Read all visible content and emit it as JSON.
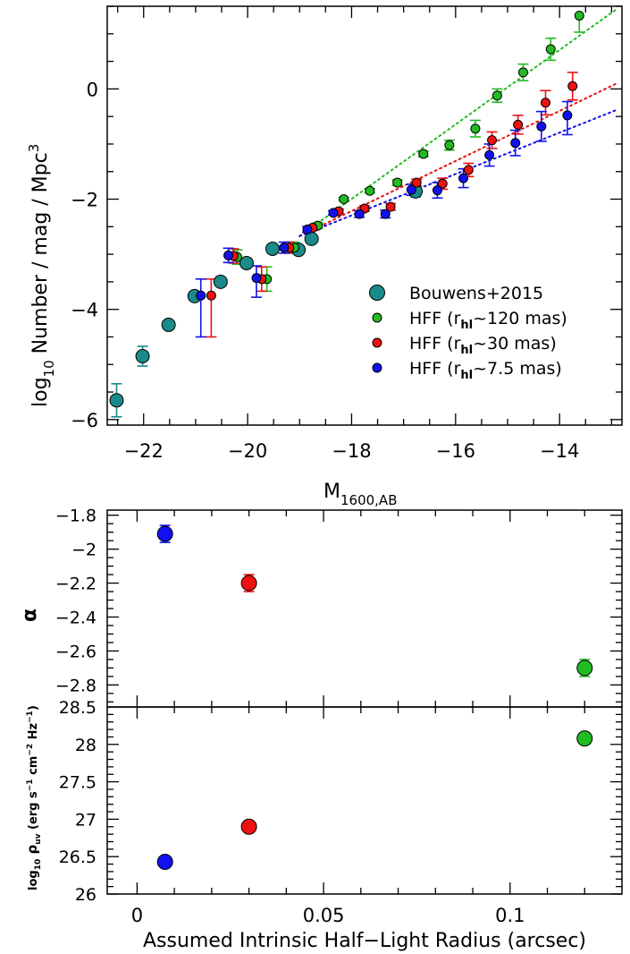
{
  "colors": {
    "bouwens": "#1a8a8a",
    "hff_green": "#22bb22",
    "hff_red": "#ee1111",
    "hff_blue": "#1111ee",
    "axis": "#000000"
  },
  "chart_data": [
    {
      "type": "scatter",
      "panel": "luminosity-function",
      "xlabel_main": "M",
      "xlabel_sub": "1600,AB",
      "ylabel_main": "log",
      "ylabel_sub": "10",
      "ylabel_rest": " Number  /  mag  /  Mpc",
      "ylabel_sup": "3",
      "xlim": [
        -22.7,
        -12.8
      ],
      "ylim": [
        -6.1,
        1.5
      ],
      "xticks": [
        -22,
        -20,
        -18,
        -16,
        -14
      ],
      "xtick_labels": [
        "−22",
        "−20",
        "−18",
        "−16",
        "−14"
      ],
      "yticks": [
        -6,
        -4,
        -2,
        0
      ],
      "ytick_labels": [
        "−6",
        "−4",
        "−2",
        "0"
      ],
      "legend": {
        "placement": "lower-right",
        "entries": [
          {
            "label_main": "Bouwens+2015",
            "label_sub": "",
            "label_rest": "",
            "color_key": "bouwens",
            "size": "large"
          },
          {
            "label_main": "HFF (r",
            "label_sub": "hl",
            "label_rest": "~120 mas)",
            "color_key": "hff_green",
            "size": "small"
          },
          {
            "label_main": "HFF (r",
            "label_sub": "hl",
            "label_rest": "~30 mas)",
            "color_key": "hff_red",
            "size": "small"
          },
          {
            "label_main": "HFF (r",
            "label_sub": "hl",
            "label_rest": "~7.5 mas)",
            "color_key": "hff_blue",
            "size": "small"
          }
        ]
      },
      "series": [
        {
          "key": "bouwens",
          "color_key": "bouwens",
          "marker": "large",
          "points": [
            {
              "x": -22.52,
              "y": -5.65,
              "err": 0.3
            },
            {
              "x": -22.02,
              "y": -4.85,
              "err": 0.18
            },
            {
              "x": -21.52,
              "y": -4.28,
              "err": 0.05
            },
            {
              "x": -21.02,
              "y": -3.76,
              "err": 0.04
            },
            {
              "x": -20.52,
              "y": -3.5,
              "err": 0.03
            },
            {
              "x": -20.02,
              "y": -3.16,
              "err": 0.03
            },
            {
              "x": -19.52,
              "y": -2.9,
              "err": 0.02
            },
            {
              "x": -19.02,
              "y": -2.92,
              "err": 0.04
            },
            {
              "x": -18.77,
              "y": -2.72,
              "err": 0.06
            },
            {
              "x": -16.77,
              "y": -1.86,
              "err": 0.1
            }
          ]
        },
        {
          "key": "hff_green",
          "color_key": "hff_green",
          "marker": "small",
          "points": [
            {
              "x": -20.2,
              "y": -3.05,
              "err_down": 0.13,
              "err_up": 0.13
            },
            {
              "x": -19.63,
              "y": -3.45,
              "err_down": 0.22,
              "err_up": 0.22
            },
            {
              "x": -19.1,
              "y": -2.88,
              "err_down": 0.1,
              "err_up": 0.1
            },
            {
              "x": -18.65,
              "y": -2.48,
              "err_down": 0.05,
              "err_up": 0.05
            },
            {
              "x": -18.15,
              "y": -2.0,
              "err_down": 0.03,
              "err_up": 0.03
            },
            {
              "x": -17.65,
              "y": -1.85,
              "err_down": 0.04,
              "err_up": 0.04
            },
            {
              "x": -17.12,
              "y": -1.7,
              "err_down": 0.05,
              "err_up": 0.05
            },
            {
              "x": -16.62,
              "y": -1.18,
              "err_down": 0.05,
              "err_up": 0.05
            },
            {
              "x": -16.12,
              "y": -1.02,
              "err_down": 0.09,
              "err_up": 0.09
            },
            {
              "x": -15.62,
              "y": -0.72,
              "err_down": 0.15,
              "err_up": 0.15
            },
            {
              "x": -15.2,
              "y": -0.12,
              "err_down": 0.12,
              "err_up": 0.12
            },
            {
              "x": -14.7,
              "y": 0.3,
              "err_down": 0.15,
              "err_up": 0.15
            },
            {
              "x": -14.17,
              "y": 0.72,
              "err_down": 0.2,
              "err_up": 0.2
            },
            {
              "x": -13.62,
              "y": 1.33,
              "err_down": 0.3,
              "err_up": 0.0
            }
          ]
        },
        {
          "key": "hff_red",
          "color_key": "hff_red",
          "marker": "small",
          "points": [
            {
              "x": -20.7,
              "y": -3.75,
              "err_down": 0.75,
              "err_up": 0.3
            },
            {
              "x": -20.27,
              "y": -3.03,
              "err_down": 0.13,
              "err_up": 0.13
            },
            {
              "x": -19.73,
              "y": -3.45,
              "err_down": 0.22,
              "err_up": 0.22
            },
            {
              "x": -19.2,
              "y": -2.88,
              "err_down": 0.1,
              "err_up": 0.1
            },
            {
              "x": -18.75,
              "y": -2.52,
              "err_down": 0.05,
              "err_up": 0.05
            },
            {
              "x": -18.25,
              "y": -2.22,
              "err_down": 0.04,
              "err_up": 0.04
            },
            {
              "x": -17.75,
              "y": -2.17,
              "err_down": 0.05,
              "err_up": 0.05
            },
            {
              "x": -17.25,
              "y": -2.14,
              "err_down": 0.06,
              "err_up": 0.06
            },
            {
              "x": -16.75,
              "y": -1.7,
              "err_down": 0.06,
              "err_up": 0.06
            },
            {
              "x": -16.25,
              "y": -1.72,
              "err_down": 0.1,
              "err_up": 0.1
            },
            {
              "x": -15.75,
              "y": -1.47,
              "err_down": 0.12,
              "err_up": 0.12
            },
            {
              "x": -15.3,
              "y": -0.93,
              "err_down": 0.15,
              "err_up": 0.15
            },
            {
              "x": -14.8,
              "y": -0.65,
              "err_down": 0.17,
              "err_up": 0.17
            },
            {
              "x": -14.27,
              "y": -0.25,
              "err_down": 0.22,
              "err_up": 0.22
            },
            {
              "x": -13.75,
              "y": 0.05,
              "err_down": 0.25,
              "err_up": 0.25
            }
          ]
        },
        {
          "key": "hff_blue",
          "color_key": "hff_blue",
          "marker": "small",
          "points": [
            {
              "x": -20.9,
              "y": -3.75,
              "err_down": 0.75,
              "err_up": 0.3
            },
            {
              "x": -20.37,
              "y": -3.02,
              "err_down": 0.13,
              "err_up": 0.13
            },
            {
              "x": -19.83,
              "y": -3.43,
              "err_down": 0.35,
              "err_up": 0.22
            },
            {
              "x": -19.3,
              "y": -2.88,
              "err_down": 0.1,
              "err_up": 0.1
            },
            {
              "x": -18.85,
              "y": -2.55,
              "err_down": 0.05,
              "err_up": 0.05
            },
            {
              "x": -18.35,
              "y": -2.25,
              "err_down": 0.04,
              "err_up": 0.04
            },
            {
              "x": -17.85,
              "y": -2.27,
              "err_down": 0.06,
              "err_up": 0.06
            },
            {
              "x": -17.35,
              "y": -2.27,
              "err_down": 0.07,
              "err_up": 0.07
            },
            {
              "x": -16.85,
              "y": -1.83,
              "err_down": 0.1,
              "err_up": 0.1
            },
            {
              "x": -16.35,
              "y": -1.84,
              "err_down": 0.14,
              "err_up": 0.14
            },
            {
              "x": -15.85,
              "y": -1.62,
              "err_down": 0.17,
              "err_up": 0.17
            },
            {
              "x": -15.35,
              "y": -1.2,
              "err_down": 0.2,
              "err_up": 0.2
            },
            {
              "x": -14.85,
              "y": -0.98,
              "err_down": 0.23,
              "err_up": 0.23
            },
            {
              "x": -14.35,
              "y": -0.68,
              "err_down": 0.27,
              "err_up": 0.27
            },
            {
              "x": -13.85,
              "y": -0.48,
              "err_down": 0.35,
              "err_up": 0.25
            }
          ]
        }
      ],
      "fit_lines": [
        {
          "color_key": "hff_green",
          "x": [
            -19.0,
            -12.9
          ],
          "y": [
            -2.67,
            1.45
          ]
        },
        {
          "color_key": "hff_red",
          "x": [
            -19.0,
            -12.9
          ],
          "y": [
            -2.67,
            0.1
          ]
        },
        {
          "color_key": "hff_blue",
          "x": [
            -19.0,
            -12.9
          ],
          "y": [
            -2.67,
            -0.38
          ]
        }
      ]
    },
    {
      "type": "scatter",
      "panel": "alpha",
      "ylabel": "α",
      "xlim": [
        -0.008,
        0.13
      ],
      "ylim": [
        -2.93,
        -1.77
      ],
      "yticks": [
        -2.8,
        -2.6,
        -2.4,
        -2.2,
        -2.0,
        -1.8
      ],
      "ytick_labels": [
        "−2.8",
        "−2.6",
        "−2.4",
        "−2.2",
        "−2",
        "−1.8"
      ],
      "points": [
        {
          "x": 0.0075,
          "y": -1.91,
          "err": 0.05,
          "color_key": "hff_blue"
        },
        {
          "x": 0.03,
          "y": -2.2,
          "err": 0.05,
          "color_key": "hff_red"
        },
        {
          "x": 0.12,
          "y": -2.7,
          "err": 0.05,
          "color_key": "hff_green"
        }
      ]
    },
    {
      "type": "scatter",
      "panel": "rho-uv",
      "ylabel_main": "log",
      "ylabel_sub1": "10",
      "ylabel_rho": " ρ",
      "ylabel_sub2": "uv",
      "ylabel_rest": " (erg s",
      "ylabel_sup1": "−1",
      "ylabel_mid": " cm",
      "ylabel_sup2": "−2",
      "ylabel_hz": " Hz",
      "ylabel_sup3": "−1",
      "ylabel_end": ")",
      "xlabel": "Assumed Intrinsic Half−Light Radius (arcsec)",
      "xlim": [
        -0.008,
        0.13
      ],
      "ylim": [
        26.0,
        28.5
      ],
      "xticks": [
        0,
        0.05,
        0.1
      ],
      "xtick_labels": [
        "0",
        "0.05",
        "0.1"
      ],
      "yticks": [
        26,
        26.5,
        27,
        27.5,
        28,
        28.5
      ],
      "ytick_labels": [
        "26",
        "26.5",
        "27",
        "27.5",
        "28",
        "28.5"
      ],
      "points": [
        {
          "x": 0.0075,
          "y": 26.43,
          "color_key": "hff_blue"
        },
        {
          "x": 0.03,
          "y": 26.9,
          "color_key": "hff_red"
        },
        {
          "x": 0.12,
          "y": 28.08,
          "color_key": "hff_green"
        }
      ]
    }
  ]
}
